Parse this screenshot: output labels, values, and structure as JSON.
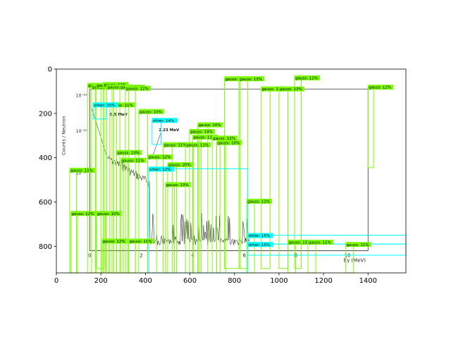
{
  "chart_data": {
    "type": "scatter",
    "title": "",
    "xlabel": "",
    "ylabel": "",
    "xlim": [
      0,
      1570
    ],
    "ylim": [
      920,
      0
    ],
    "x_ticks": [
      0,
      200,
      400,
      600,
      800,
      1000,
      1200,
      1400
    ],
    "y_ticks": [
      0,
      200,
      400,
      600,
      800
    ],
    "grid": false,
    "embedded_image": {
      "y_axis_label": "Counts / Neutron",
      "x_axis_label": "Eγ (MeV)",
      "y_tick_labels": [
        "10⁻²⁴",
        "10⁻²⁵",
        "10⁻²⁶"
      ],
      "x_tick_labels": [
        "0",
        "2",
        "4",
        "6",
        "8",
        "10"
      ],
      "peak_labels": [
        "0.5 MeV",
        "2.23 MeV"
      ]
    },
    "colors": {
      "gauss": "#7cfc00",
      "other": "#00ffff",
      "spectrum": "#111111"
    },
    "boxes": [
      {
        "label": "gauss: 11%",
        "type": "gauss",
        "x0": 140,
        "y0": 72,
        "x1": 175,
        "y1": 920
      },
      {
        "label": "gauss: 10%",
        "type": "gauss",
        "x0": 158,
        "y0": 80,
        "x1": 200,
        "y1": 920
      },
      {
        "label": "gauss: 12%",
        "type": "gauss",
        "x0": 178,
        "y0": 72,
        "x1": 215,
        "y1": 900
      },
      {
        "label": "gauss: 11%",
        "type": "gauss",
        "x0": 210,
        "y0": 68,
        "x1": 250,
        "y1": 920
      },
      {
        "label": "gauss: 11%",
        "type": "gauss",
        "x0": 226,
        "y0": 80,
        "x1": 258,
        "y1": 920
      },
      {
        "label": "gauss: 13%",
        "type": "gauss",
        "x0": 285,
        "y0": 80,
        "x1": 325,
        "y1": 920
      },
      {
        "label": "gauss: 12%",
        "type": "gauss",
        "x0": 310,
        "y0": 85,
        "x1": 355,
        "y1": 920
      },
      {
        "label": "gauss: 11%",
        "type": "gauss",
        "x0": 755,
        "y0": 42,
        "x1": 825,
        "y1": 900
      },
      {
        "label": "gauss: 13%",
        "type": "gauss",
        "x0": 820,
        "y0": 42,
        "x1": 860,
        "y1": 900
      },
      {
        "label": "gauss: 13%",
        "type": "gauss",
        "x0": 920,
        "y0": 88,
        "x1": 960,
        "y1": 900
      },
      {
        "label": "gauss: 13%",
        "type": "gauss",
        "x0": 1000,
        "y0": 88,
        "x1": 1040,
        "y1": 900
      },
      {
        "label": "gauss: 11%",
        "type": "gauss",
        "x0": 1070,
        "y0": 38,
        "x1": 1100,
        "y1": 900
      },
      {
        "label": "gauss: 12%",
        "type": "gauss",
        "x0": 1400,
        "y0": 80,
        "x1": 1425,
        "y1": 445
      },
      {
        "label": "gauss: 11%",
        "type": "gauss",
        "x0": 240,
        "y0": 160,
        "x1": 270,
        "y1": 920
      },
      {
        "label": "gauss: 10%",
        "type": "gauss",
        "x0": 370,
        "y0": 190,
        "x1": 410,
        "y1": 920
      },
      {
        "label": "gauss: 10%",
        "type": "gauss",
        "x0": 635,
        "y0": 250,
        "x1": 680,
        "y1": 920
      },
      {
        "label": "gauss: 14%",
        "type": "gauss",
        "x0": 598,
        "y0": 280,
        "x1": 640,
        "y1": 920
      },
      {
        "label": "gauss: 11%",
        "type": "gauss",
        "x0": 612,
        "y0": 305,
        "x1": 650,
        "y1": 920
      },
      {
        "label": "gauss: 12%",
        "type": "gauss",
        "x0": 700,
        "y0": 310,
        "x1": 735,
        "y1": 920
      },
      {
        "label": "gauss: 10%",
        "type": "gauss",
        "x0": 720,
        "y0": 330,
        "x1": 760,
        "y1": 920
      },
      {
        "label": "gauss: 11%",
        "type": "gauss",
        "x0": 480,
        "y0": 340,
        "x1": 520,
        "y1": 920
      },
      {
        "label": "gauss: 11%",
        "type": "gauss",
        "x0": 580,
        "y0": 340,
        "x1": 615,
        "y1": 920
      },
      {
        "label": "gauss: 10%",
        "type": "gauss",
        "x0": 270,
        "y0": 375,
        "x1": 300,
        "y1": 920
      },
      {
        "label": "gauss: 12%",
        "type": "gauss",
        "x0": 410,
        "y0": 395,
        "x1": 450,
        "y1": 920
      },
      {
        "label": "gauss: 11%",
        "type": "gauss",
        "x0": 290,
        "y0": 410,
        "x1": 320,
        "y1": 920
      },
      {
        "label": "gauss: 20%",
        "type": "gauss",
        "x0": 500,
        "y0": 430,
        "x1": 540,
        "y1": 920
      },
      {
        "label": "gauss: 11%",
        "type": "gauss",
        "x0": 60,
        "y0": 455,
        "x1": 90,
        "y1": 920
      },
      {
        "label": "gauss: 13%",
        "type": "gauss",
        "x0": 490,
        "y0": 520,
        "x1": 530,
        "y1": 920
      },
      {
        "label": "gauss: 11%",
        "type": "gauss",
        "x0": 855,
        "y0": 595,
        "x1": 890,
        "y1": 920
      },
      {
        "label": "gauss: 12%",
        "type": "gauss",
        "x0": 65,
        "y0": 650,
        "x1": 95,
        "y1": 920
      },
      {
        "label": "gauss: 10%",
        "type": "gauss",
        "x0": 180,
        "y0": 650,
        "x1": 220,
        "y1": 920
      },
      {
        "label": "gauss: 12%",
        "type": "gauss",
        "x0": 205,
        "y0": 775,
        "x1": 235,
        "y1": 920
      },
      {
        "label": "gauss: 11%",
        "type": "gauss",
        "x0": 325,
        "y0": 775,
        "x1": 355,
        "y1": 920
      },
      {
        "label": "gauss: 11%",
        "type": "gauss",
        "x0": 1040,
        "y0": 780,
        "x1": 1075,
        "y1": 920
      },
      {
        "label": "gauss: 11%",
        "type": "gauss",
        "x0": 1130,
        "y0": 780,
        "x1": 1165,
        "y1": 920
      },
      {
        "label": "gauss: 11%",
        "type": "gauss",
        "x0": 1300,
        "y0": 790,
        "x1": 1335,
        "y1": 920
      },
      {
        "label": "other: 15%",
        "type": "other",
        "x0": 165,
        "y0": 160,
        "x1": 225,
        "y1": 225
      },
      {
        "label": "other: 14%",
        "type": "other",
        "x0": 430,
        "y0": 230,
        "x1": 470,
        "y1": 340
      },
      {
        "label": "other: 12%",
        "type": "other",
        "x0": 415,
        "y0": 450,
        "x1": 860,
        "y1": 920
      },
      {
        "label": "other: 15%",
        "type": "other",
        "x0": 860,
        "y0": 750,
        "x1": 1570,
        "y1": 790
      },
      {
        "label": "other: 15%",
        "type": "other",
        "x0": 860,
        "y0": 790,
        "x1": 1570,
        "y1": 840
      }
    ]
  }
}
